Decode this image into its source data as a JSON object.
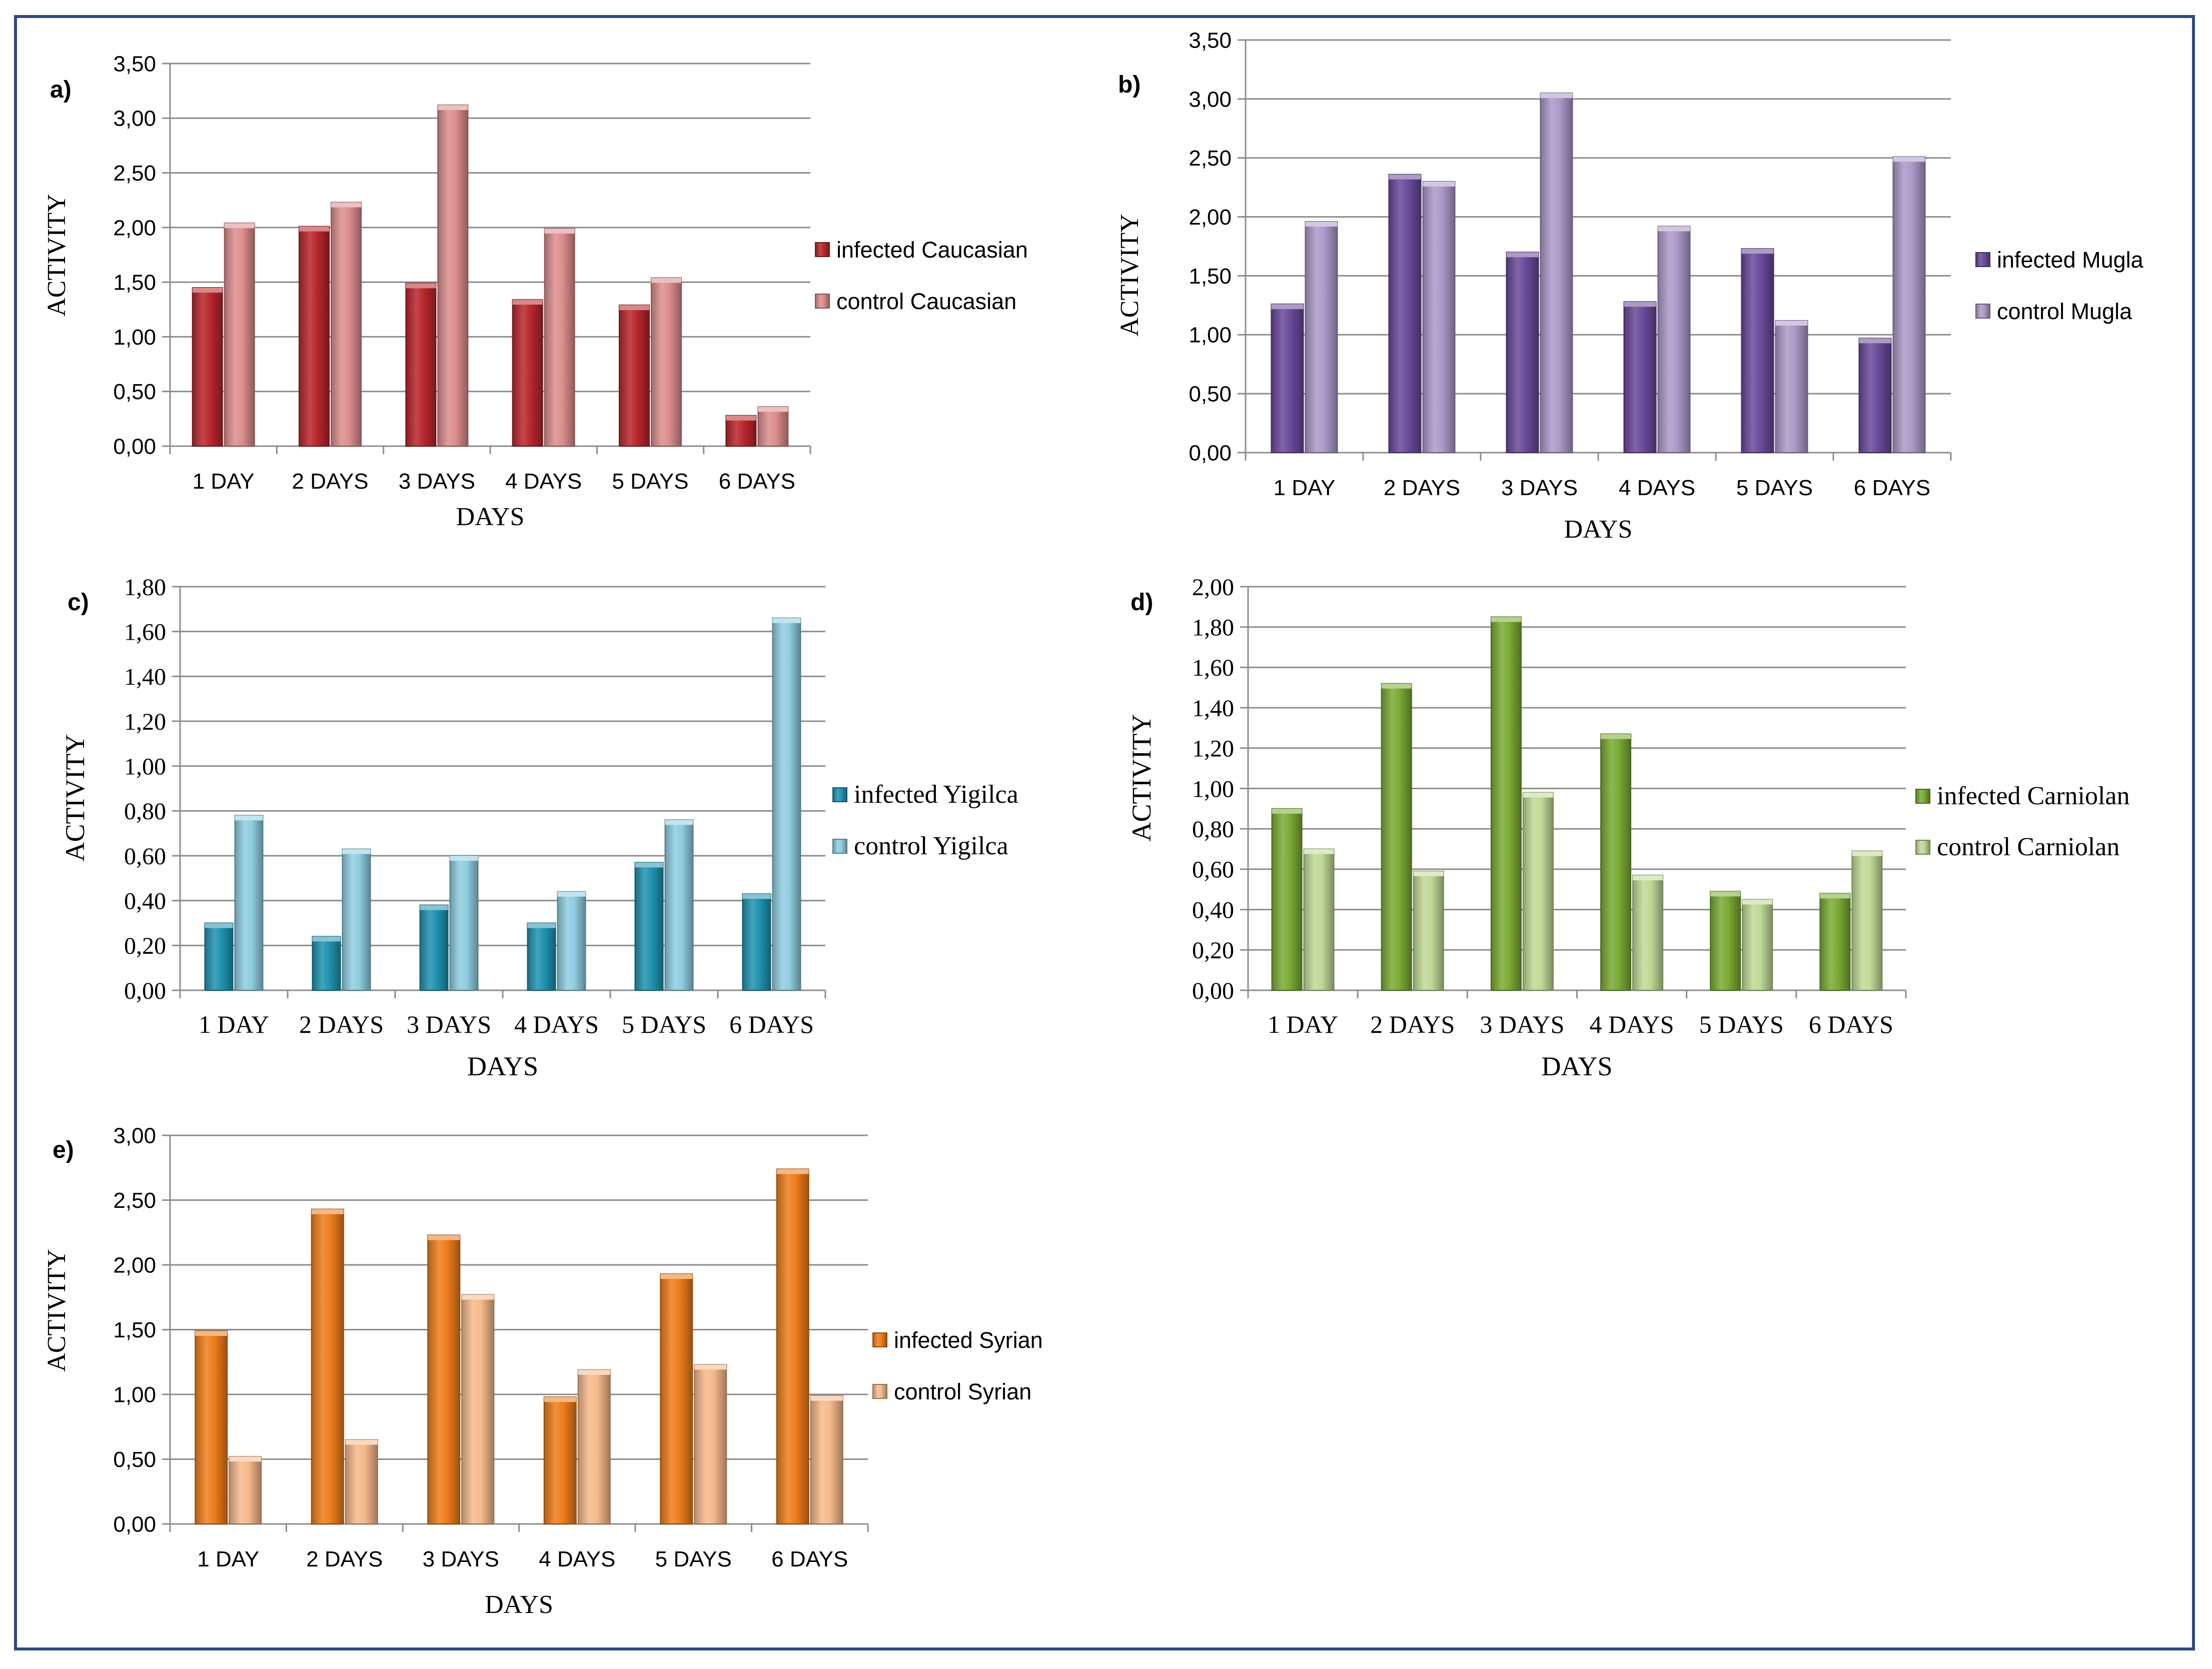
{
  "chart_data": [
    {
      "type": "bar",
      "panel_label": "a)",
      "categories": [
        "1 DAY",
        "2 DAYS",
        "3 DAYS",
        "4 DAYS",
        "5 DAYS",
        "6 DAYS"
      ],
      "series": [
        {
          "name": "infected Caucasian",
          "values": [
            1.45,
            2.01,
            1.49,
            1.34,
            1.29,
            0.28
          ],
          "color": "#b8272c"
        },
        {
          "name": "control Caucasian",
          "values": [
            2.04,
            2.23,
            3.12,
            1.99,
            1.54,
            0.36
          ],
          "color": "#dc8d8d"
        }
      ],
      "tick_labels": [
        "0,00",
        "0,50",
        "1,00",
        "1,50",
        "2,00",
        "2,50",
        "3,00",
        "3,50"
      ],
      "ylim": [
        0,
        3.5
      ],
      "xlabel": "DAYS",
      "ylabel": "ACTIVITY",
      "font": "sans",
      "legend": "right",
      "grid": true
    },
    {
      "type": "bar",
      "panel_label": "b)",
      "categories": [
        "1 DAY",
        "2 DAYS",
        "3 DAYS",
        "4 DAYS",
        "5 DAYS",
        "6 DAYS"
      ],
      "series": [
        {
          "name": "infected Mugla",
          "values": [
            1.26,
            2.36,
            1.7,
            1.28,
            1.73,
            0.97
          ],
          "color": "#6a4a9a"
        },
        {
          "name": "control Mugla",
          "values": [
            1.96,
            2.3,
            3.05,
            1.92,
            1.12,
            2.51
          ],
          "color": "#ab9ac9"
        }
      ],
      "tick_labels": [
        "0,00",
        "0,50",
        "1,00",
        "1,50",
        "2,00",
        "2,50",
        "3,00",
        "3,50"
      ],
      "ylim": [
        0,
        3.5
      ],
      "xlabel": "DAYS",
      "ylabel": "ACTIVITY",
      "font": "sans",
      "legend": "right",
      "grid": true
    },
    {
      "type": "bar",
      "panel_label": "c)",
      "categories": [
        "1 DAY",
        "2 DAYS",
        "3 DAYS",
        "4 DAYS",
        "5 DAYS",
        "6 DAYS"
      ],
      "series": [
        {
          "name": "infected Yigilca",
          "values": [
            0.3,
            0.24,
            0.38,
            0.3,
            0.57,
            0.43
          ],
          "color": "#1f93b0"
        },
        {
          "name": "control Yigilca",
          "values": [
            0.78,
            0.63,
            0.6,
            0.44,
            0.76,
            1.66
          ],
          "color": "#8fcde0"
        }
      ],
      "tick_labels": [
        "0,00",
        "0,20",
        "0,40",
        "0,60",
        "0,80",
        "1,00",
        "1,20",
        "1,40",
        "1,60",
        "1,80"
      ],
      "ylim": [
        0,
        1.8
      ],
      "xlabel": "DAYS",
      "ylabel": "ACTIVITY",
      "font": "serif",
      "legend": "right",
      "grid": true
    },
    {
      "type": "bar",
      "panel_label": "d)",
      "categories": [
        "1 DAY",
        "2 DAYS",
        "3 DAYS",
        "4 DAYS",
        "5 DAYS",
        "6 DAYS"
      ],
      "series": [
        {
          "name": "infected Carniolan",
          "values": [
            0.9,
            1.52,
            1.85,
            1.27,
            0.49,
            0.48
          ],
          "color": "#7aab34"
        },
        {
          "name": "control Carniolan",
          "values": [
            0.7,
            0.59,
            0.98,
            0.57,
            0.45,
            0.69
          ],
          "color": "#bfd996"
        }
      ],
      "tick_labels": [
        "0,00",
        "0,20",
        "0,40",
        "0,60",
        "0,80",
        "1,00",
        "1,20",
        "1,40",
        "1,60",
        "1,80",
        "2,00"
      ],
      "ylim": [
        0,
        2.0
      ],
      "xlabel": "DAYS",
      "ylabel": "ACTIVITY",
      "font": "serif",
      "legend": "right",
      "grid": true
    },
    {
      "type": "bar",
      "panel_label": "e)",
      "categories": [
        "1 DAY",
        "2 DAYS",
        "3 DAYS",
        "4 DAYS",
        "5 DAYS",
        "6 DAYS"
      ],
      "series": [
        {
          "name": "infected Syrian",
          "values": [
            1.49,
            2.43,
            2.23,
            0.98,
            1.93,
            2.74
          ],
          "color": "#ee7d1b"
        },
        {
          "name": "control Syrian",
          "values": [
            0.52,
            0.65,
            1.77,
            1.19,
            1.23,
            0.99
          ],
          "color": "#f6b98c"
        }
      ],
      "tick_labels": [
        "0,00",
        "0,50",
        "1,00",
        "1,50",
        "2,00",
        "2,50",
        "3,00"
      ],
      "ylim": [
        0,
        3.0
      ],
      "xlabel": "DAYS",
      "ylabel": "ACTIVITY",
      "font": "sans",
      "legend": "right",
      "grid": true
    }
  ]
}
